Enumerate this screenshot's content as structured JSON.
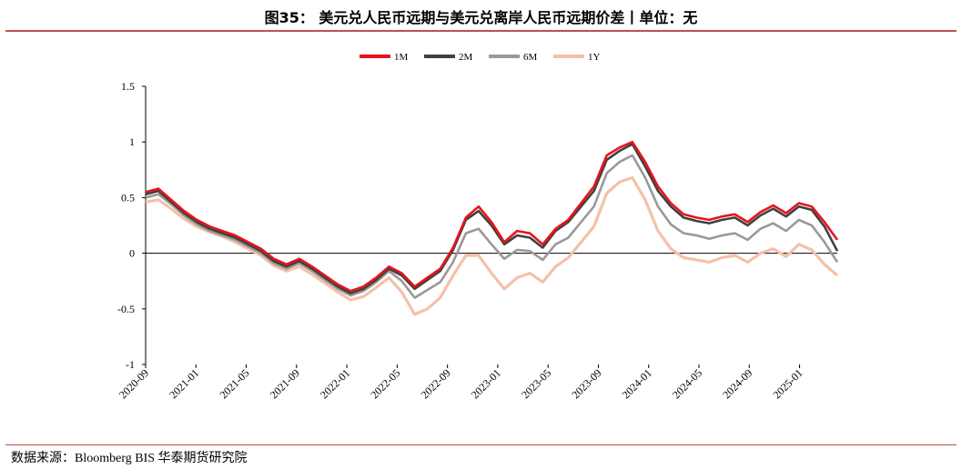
{
  "title": "图35：  美元兑人民币远期与美元兑离岸人民币远期价差丨单位：无",
  "source": "数据来源：Bloomberg BIS 华泰期货研究院",
  "chart_data": {
    "type": "line",
    "title": "美元兑人民币远期与美元兑离岸人民币远期价差",
    "unit": "无",
    "ylim": [
      -1,
      1.5
    ],
    "yticks": [
      -1,
      -0.5,
      0,
      0.5,
      1,
      1.5
    ],
    "ytick_labels": [
      "-1",
      "-0.5",
      "0",
      "0.5",
      "1",
      "1.5"
    ],
    "xticks": [
      "2020-09",
      "2021-01",
      "2021-05",
      "2021-09",
      "2022-01",
      "2022-05",
      "2022-09",
      "2023-01",
      "2023-05",
      "2023-09",
      "2024-01",
      "2024-05",
      "2024-09",
      "2025-01"
    ],
    "legend_position": "top-center",
    "x_start": "2020-09",
    "x_end": "2025-04",
    "series": [
      {
        "name": "1M",
        "color": "#e8141c",
        "values": [
          0.55,
          0.58,
          0.48,
          0.38,
          0.3,
          0.24,
          0.2,
          0.16,
          0.1,
          0.04,
          -0.05,
          -0.1,
          -0.05,
          -0.12,
          -0.2,
          -0.28,
          -0.34,
          -0.3,
          -0.22,
          -0.12,
          -0.18,
          -0.3,
          -0.22,
          -0.14,
          0.05,
          0.32,
          0.42,
          0.28,
          0.1,
          0.2,
          0.18,
          0.08,
          0.22,
          0.3,
          0.45,
          0.6,
          0.88,
          0.95,
          1.0,
          0.82,
          0.6,
          0.45,
          0.35,
          0.32,
          0.3,
          0.33,
          0.35,
          0.28,
          0.37,
          0.43,
          0.36,
          0.45,
          0.42,
          0.28,
          0.12
        ]
      },
      {
        "name": "2M",
        "color": "#404040",
        "values": [
          0.53,
          0.56,
          0.46,
          0.36,
          0.28,
          0.22,
          0.18,
          0.14,
          0.08,
          0.02,
          -0.07,
          -0.12,
          -0.07,
          -0.14,
          -0.22,
          -0.3,
          -0.36,
          -0.32,
          -0.24,
          -0.14,
          -0.2,
          -0.32,
          -0.24,
          -0.16,
          0.03,
          0.3,
          0.38,
          0.25,
          0.08,
          0.16,
          0.14,
          0.05,
          0.2,
          0.28,
          0.42,
          0.56,
          0.84,
          0.92,
          0.98,
          0.78,
          0.56,
          0.42,
          0.32,
          0.29,
          0.27,
          0.3,
          0.32,
          0.25,
          0.34,
          0.4,
          0.33,
          0.42,
          0.39,
          0.24,
          0.02
        ]
      },
      {
        "name": "6M",
        "color": "#999999",
        "values": [
          0.5,
          0.53,
          0.44,
          0.34,
          0.26,
          0.2,
          0.16,
          0.12,
          0.06,
          0.0,
          -0.09,
          -0.14,
          -0.09,
          -0.16,
          -0.24,
          -0.32,
          -0.38,
          -0.34,
          -0.26,
          -0.16,
          -0.25,
          -0.4,
          -0.33,
          -0.26,
          -0.08,
          0.18,
          0.22,
          0.08,
          -0.05,
          0.03,
          0.02,
          -0.06,
          0.08,
          0.14,
          0.28,
          0.42,
          0.72,
          0.82,
          0.88,
          0.68,
          0.42,
          0.26,
          0.18,
          0.16,
          0.13,
          0.16,
          0.18,
          0.12,
          0.22,
          0.27,
          0.2,
          0.3,
          0.25,
          0.1,
          -0.08
        ]
      },
      {
        "name": "1Y",
        "color": "#f5c0a8",
        "values": [
          0.46,
          0.48,
          0.4,
          0.31,
          0.24,
          0.19,
          0.15,
          0.1,
          0.04,
          -0.02,
          -0.11,
          -0.16,
          -0.12,
          -0.19,
          -0.27,
          -0.35,
          -0.42,
          -0.39,
          -0.31,
          -0.22,
          -0.35,
          -0.55,
          -0.5,
          -0.4,
          -0.2,
          -0.02,
          -0.02,
          -0.18,
          -0.32,
          -0.22,
          -0.18,
          -0.26,
          -0.12,
          -0.04,
          0.1,
          0.24,
          0.54,
          0.64,
          0.68,
          0.48,
          0.2,
          0.04,
          -0.04,
          -0.06,
          -0.08,
          -0.04,
          -0.02,
          -0.08,
          0.0,
          0.04,
          -0.03,
          0.08,
          0.03,
          -0.1,
          -0.2
        ]
      }
    ]
  }
}
